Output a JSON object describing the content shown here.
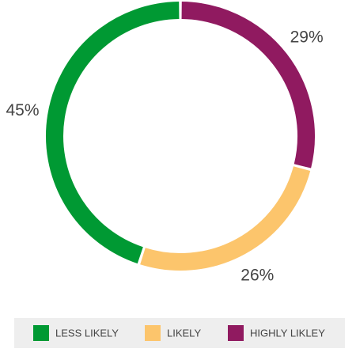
{
  "chart_data": {
    "type": "donut",
    "categories": [
      "LESS LIKELY",
      "LIKELY",
      "HIGHLY LIKLEY"
    ],
    "values": [
      45,
      26,
      29
    ],
    "value_labels": [
      "45%",
      "26%",
      "29%"
    ],
    "colors": [
      "#009933",
      "#fcc56c",
      "#901a60"
    ],
    "legend": "bottom"
  }
}
